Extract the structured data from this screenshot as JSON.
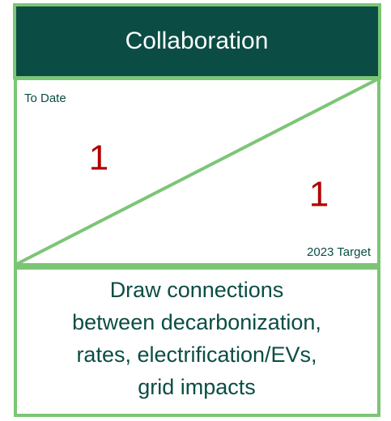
{
  "header": {
    "title": "Collaboration"
  },
  "to_date": {
    "label": "To Date",
    "value": 1
  },
  "target": {
    "label": "2023 Target",
    "value": 1
  },
  "description": [
    "Draw connections",
    "between decarbonization,",
    "rates, electrification/EVs,",
    "grid impacts"
  ]
}
